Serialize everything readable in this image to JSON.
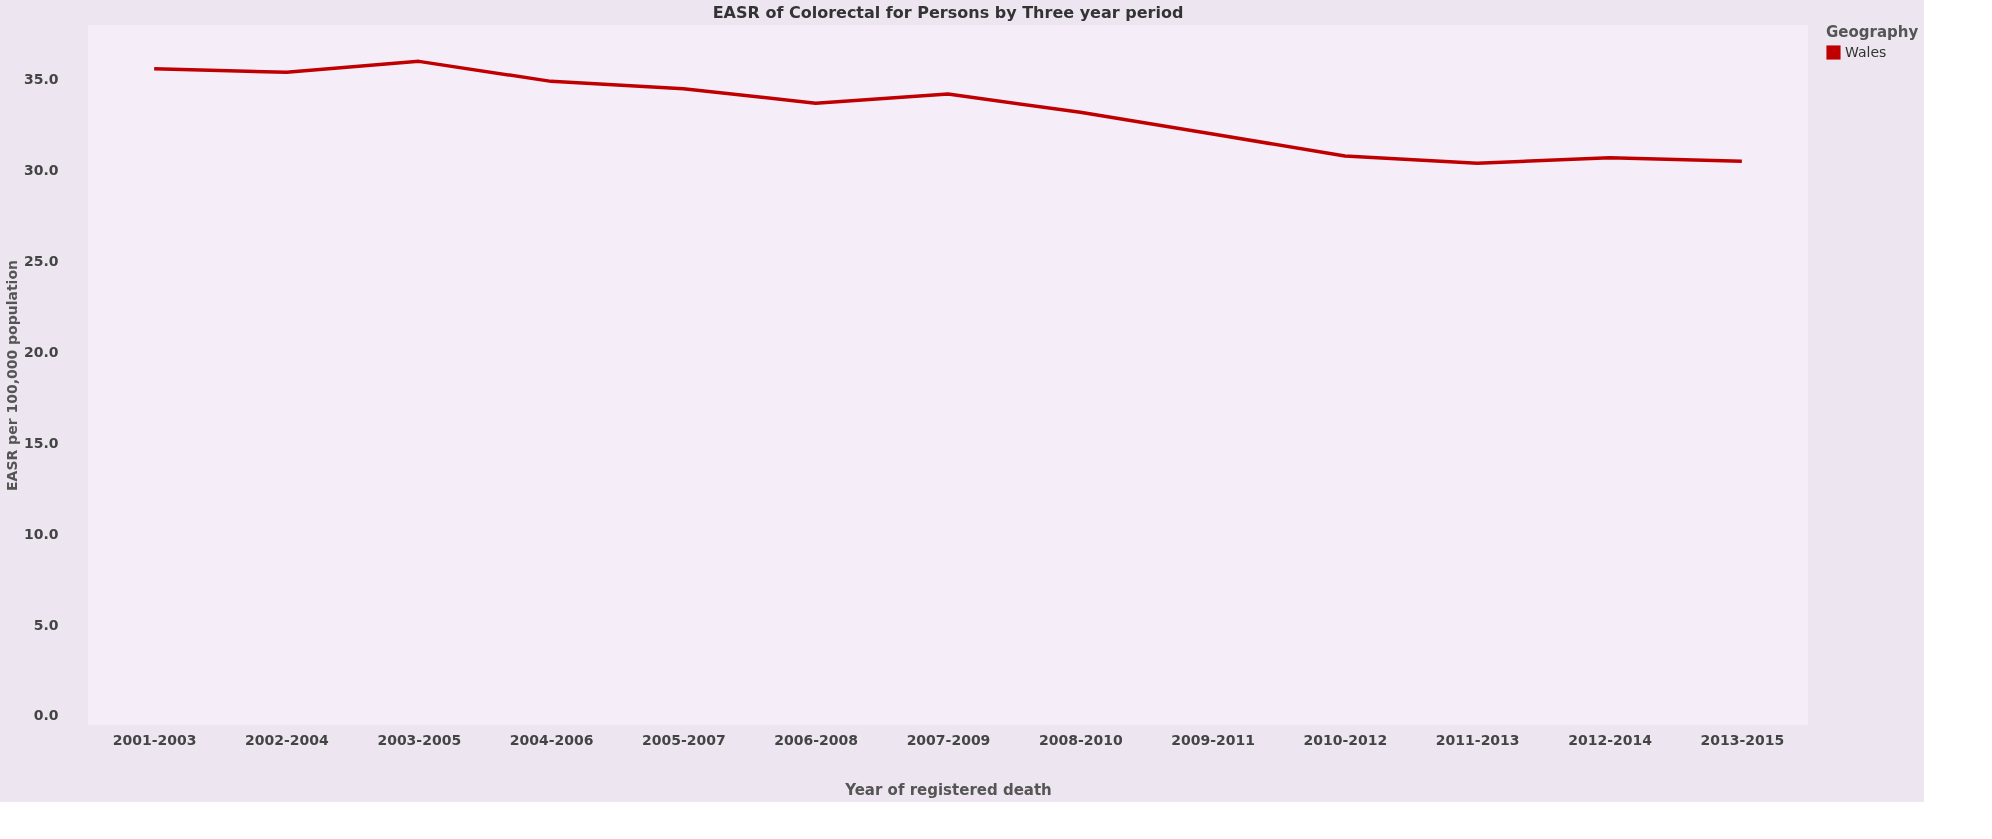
{
  "chart_data": {
    "type": "line",
    "title": "EASR of Colorectal for Persons by Three year period",
    "xlabel": "Year of registered death",
    "ylabel": "EASR per 100,000 population",
    "legend_title": "Geography",
    "legend": "top right",
    "grid": false,
    "marker": "none",
    "line_style": "solid",
    "categories": [
      "2001-2003",
      "2002-2004",
      "2003-2005",
      "2004-2006",
      "2005-2007",
      "2006-2008",
      "2007-2009",
      "2008-2010",
      "2009-2011",
      "2010-2012",
      "2011-2013",
      "2012-2014",
      "2013-2015"
    ],
    "ylim": [
      -0.5,
      38
    ],
    "yticks": [
      {
        "value": 0,
        "label": "0.0"
      },
      {
        "value": 5,
        "label": "5.0"
      },
      {
        "value": 10,
        "label": "10.0"
      },
      {
        "value": 15,
        "label": "15.0"
      },
      {
        "value": 20,
        "label": "20.0"
      },
      {
        "value": 25,
        "label": "25.0"
      },
      {
        "value": 30,
        "label": "30.0"
      },
      {
        "value": 35,
        "label": "35.0"
      }
    ],
    "series": [
      {
        "name": "Wales",
        "color": "#c00000",
        "values": [
          35.6,
          35.4,
          36.0,
          34.9,
          34.5,
          33.7,
          34.2,
          33.2,
          32.0,
          30.8,
          30.4,
          30.7,
          30.5
        ]
      }
    ]
  }
}
